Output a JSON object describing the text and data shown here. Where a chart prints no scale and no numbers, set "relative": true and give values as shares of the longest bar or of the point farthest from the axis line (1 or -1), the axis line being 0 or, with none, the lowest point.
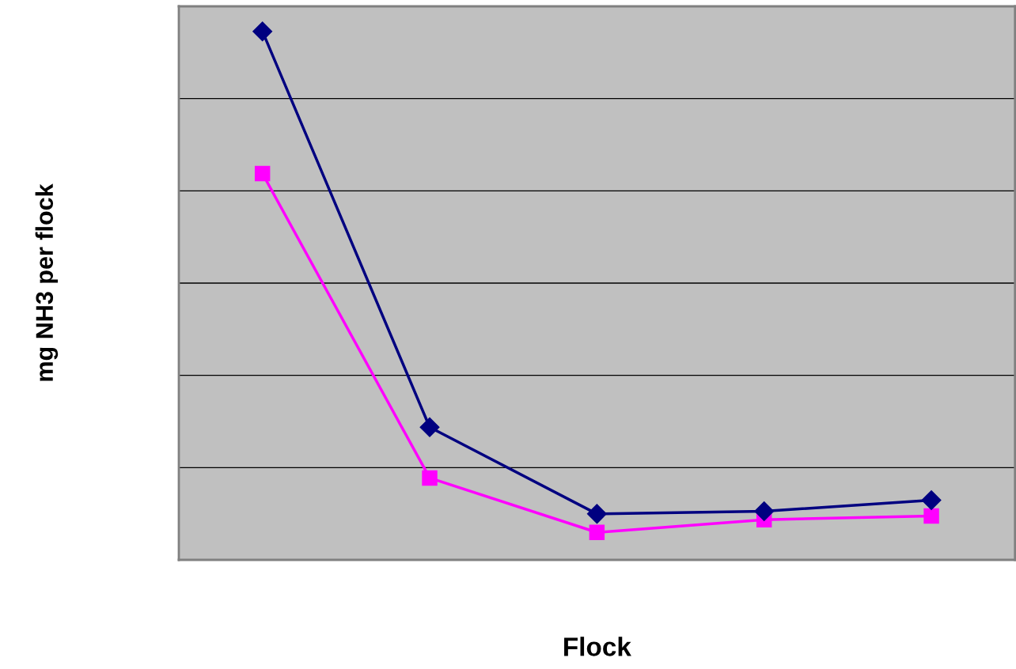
{
  "chart_data": {
    "type": "line",
    "xlabel": "Flock",
    "ylabel": "mg NH3 per flock",
    "categories": [
      null,
      null,
      null,
      null,
      null
    ],
    "relative": true,
    "grid": "y",
    "tick_labels": false,
    "legend": false,
    "line_style": "solid",
    "series": [
      {
        "color": "#000080",
        "marker": "diamond",
        "values": [
          1,
          0.251,
          0.087,
          0.092,
          0.113
        ]
      },
      {
        "color": "#ff00ff",
        "marker": "square",
        "values": [
          0.731,
          0.155,
          0.052,
          0.076,
          0.083
        ]
      }
    ]
  }
}
